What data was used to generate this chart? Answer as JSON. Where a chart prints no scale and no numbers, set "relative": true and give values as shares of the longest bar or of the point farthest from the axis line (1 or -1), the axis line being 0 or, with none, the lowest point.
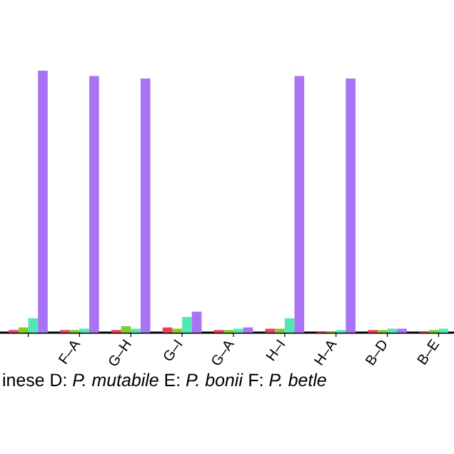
{
  "chart_data": {
    "type": "bar",
    "relative": true,
    "categories": [
      null,
      "F–A",
      "G–H",
      "G–I",
      "G–A",
      "H–I",
      "H–A",
      "B–D",
      "B–E"
    ],
    "series": [
      {
        "color": "#e8405c",
        "values": [
          0.01,
          0.01,
          0.01,
          0.02,
          0.01,
          0.015,
          0.005,
          0.01,
          0.005
        ]
      },
      {
        "color": "#84cc2c",
        "values": [
          0.02,
          0.01,
          0.025,
          0.015,
          0.01,
          0.015,
          0.005,
          0.01,
          0.01
        ]
      },
      {
        "color": "#52e8b4",
        "values": [
          0.055,
          0.015,
          0.015,
          0.06,
          0.015,
          0.055,
          0.01,
          0.015,
          0.015
        ]
      },
      {
        "color": "#a874f4",
        "values": [
          1,
          0.98,
          0.97,
          0.08,
          0.02,
          0.98,
          0.97,
          0.015,
          null
        ]
      }
    ],
    "annotations": [
      "inese   D: *P. mutabile*   E: *P. bonii*   F: *P. betle*"
    ]
  }
}
